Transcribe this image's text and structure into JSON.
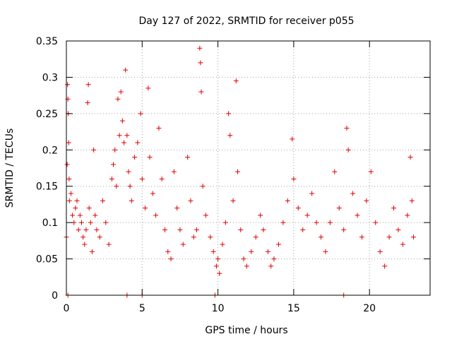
{
  "chart_data": {
    "type": "scatter",
    "title": "Day 127 of 2022, SRMTID for receiver p055",
    "xlabel": "GPS time / hours",
    "ylabel": "SRMTID / TECUs",
    "xlim": [
      0,
      24
    ],
    "ylim": [
      0,
      0.35
    ],
    "grid": true,
    "marker": "+",
    "series_color": "#e00000",
    "x_ticks": [
      0,
      5,
      10,
      15,
      20
    ],
    "x_tick_labels": [
      "0",
      "5",
      "10",
      "15",
      "20"
    ],
    "y_ticks": [
      0,
      0.05,
      0.1,
      0.15,
      0.2,
      0.25,
      0.3,
      0.35
    ],
    "y_tick_labels": [
      "0",
      "0.05",
      "0.1",
      "0.15",
      "0.2",
      "0.25",
      "0.3",
      "0.35"
    ],
    "series": [
      {
        "name": "p055",
        "points": [
          [
            0.0,
            0.08
          ],
          [
            0.05,
            0.18
          ],
          [
            0.08,
            0.29
          ],
          [
            0.1,
            0.27
          ],
          [
            0.12,
            0.25
          ],
          [
            0.15,
            0.21
          ],
          [
            0.18,
            0.16
          ],
          [
            0.2,
            0.13
          ],
          [
            0.3,
            0.14
          ],
          [
            0.4,
            0.11
          ],
          [
            0.5,
            0.1
          ],
          [
            0.6,
            0.12
          ],
          [
            0.7,
            0.13
          ],
          [
            0.8,
            0.09
          ],
          [
            0.9,
            0.11
          ],
          [
            1.0,
            0.1
          ],
          [
            1.1,
            0.08
          ],
          [
            1.2,
            0.07
          ],
          [
            1.3,
            0.09
          ],
          [
            1.4,
            0.265
          ],
          [
            1.45,
            0.29
          ],
          [
            1.5,
            0.12
          ],
          [
            1.6,
            0.1
          ],
          [
            1.7,
            0.06
          ],
          [
            1.8,
            0.2
          ],
          [
            1.9,
            0.11
          ],
          [
            2.0,
            0.09
          ],
          [
            2.2,
            0.08
          ],
          [
            2.4,
            0.13
          ],
          [
            2.6,
            0.1
          ],
          [
            2.8,
            0.07
          ],
          [
            3.0,
            0.16
          ],
          [
            3.1,
            0.18
          ],
          [
            3.2,
            0.2
          ],
          [
            3.3,
            0.15
          ],
          [
            3.4,
            0.27
          ],
          [
            3.5,
            0.22
          ],
          [
            3.6,
            0.28
          ],
          [
            3.7,
            0.24
          ],
          [
            3.8,
            0.21
          ],
          [
            3.9,
            0.31
          ],
          [
            4.0,
            0.22
          ],
          [
            4.1,
            0.17
          ],
          [
            4.2,
            0.15
          ],
          [
            4.3,
            0.13
          ],
          [
            4.5,
            0.19
          ],
          [
            4.7,
            0.21
          ],
          [
            4.9,
            0.25
          ],
          [
            5.0,
            0.16
          ],
          [
            5.2,
            0.12
          ],
          [
            5.4,
            0.285
          ],
          [
            5.5,
            0.19
          ],
          [
            5.7,
            0.14
          ],
          [
            5.9,
            0.11
          ],
          [
            6.1,
            0.23
          ],
          [
            6.3,
            0.16
          ],
          [
            6.5,
            0.09
          ],
          [
            6.7,
            0.06
          ],
          [
            6.9,
            0.05
          ],
          [
            7.1,
            0.17
          ],
          [
            7.3,
            0.12
          ],
          [
            7.5,
            0.09
          ],
          [
            7.7,
            0.07
          ],
          [
            8.0,
            0.19
          ],
          [
            8.2,
            0.13
          ],
          [
            8.4,
            0.08
          ],
          [
            8.6,
            0.09
          ],
          [
            8.8,
            0.34
          ],
          [
            8.85,
            0.32
          ],
          [
            8.9,
            0.28
          ],
          [
            9.0,
            0.15
          ],
          [
            9.2,
            0.11
          ],
          [
            9.5,
            0.08
          ],
          [
            9.7,
            0.06
          ],
          [
            9.9,
            0.04
          ],
          [
            10.0,
            0.05
          ],
          [
            10.1,
            0.03
          ],
          [
            10.3,
            0.07
          ],
          [
            10.5,
            0.1
          ],
          [
            10.7,
            0.25
          ],
          [
            10.8,
            0.22
          ],
          [
            11.0,
            0.13
          ],
          [
            11.2,
            0.295
          ],
          [
            11.3,
            0.17
          ],
          [
            11.5,
            0.09
          ],
          [
            11.7,
            0.05
          ],
          [
            11.9,
            0.04
          ],
          [
            12.2,
            0.06
          ],
          [
            12.5,
            0.08
          ],
          [
            12.8,
            0.11
          ],
          [
            13.0,
            0.09
          ],
          [
            13.3,
            0.06
          ],
          [
            13.5,
            0.04
          ],
          [
            13.7,
            0.05
          ],
          [
            14.0,
            0.07
          ],
          [
            14.3,
            0.1
          ],
          [
            14.6,
            0.13
          ],
          [
            14.9,
            0.215
          ],
          [
            15.0,
            0.16
          ],
          [
            15.3,
            0.12
          ],
          [
            15.6,
            0.09
          ],
          [
            15.9,
            0.11
          ],
          [
            16.2,
            0.14
          ],
          [
            16.5,
            0.1
          ],
          [
            16.8,
            0.08
          ],
          [
            17.1,
            0.06
          ],
          [
            17.4,
            0.1
          ],
          [
            17.7,
            0.17
          ],
          [
            18.0,
            0.12
          ],
          [
            18.3,
            0.09
          ],
          [
            18.5,
            0.23
          ],
          [
            18.6,
            0.2
          ],
          [
            18.9,
            0.14
          ],
          [
            19.2,
            0.11
          ],
          [
            19.5,
            0.08
          ],
          [
            19.8,
            0.13
          ],
          [
            20.1,
            0.17
          ],
          [
            20.4,
            0.1
          ],
          [
            20.7,
            0.06
          ],
          [
            21.0,
            0.04
          ],
          [
            21.3,
            0.08
          ],
          [
            21.6,
            0.12
          ],
          [
            21.9,
            0.09
          ],
          [
            22.2,
            0.07
          ],
          [
            22.5,
            0.11
          ],
          [
            22.7,
            0.19
          ],
          [
            22.8,
            0.13
          ],
          [
            22.9,
            0.08
          ],
          [
            0.1,
            0.0
          ],
          [
            4.0,
            0.0
          ],
          [
            5.0,
            0.0
          ],
          [
            9.8,
            0.0
          ],
          [
            18.3,
            0.0
          ]
        ]
      }
    ]
  }
}
